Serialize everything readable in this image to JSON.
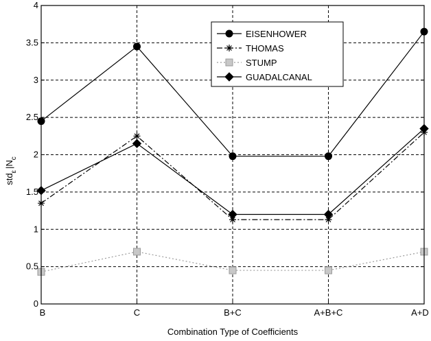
{
  "chart_data": {
    "type": "line",
    "categories": [
      "B",
      "C",
      "B+C",
      "A+B+C",
      "A+D"
    ],
    "xlabel": "Combination Type of Coefficients",
    "ylabel": "std",
    "ylabel_subscript": "ε",
    "ylabel_tail": "N",
    "ylabel_tail_subscript": "c",
    "ylim": [
      0,
      4
    ],
    "yticks": [
      "0",
      "0.5",
      "1",
      "1.5",
      "2",
      "2.5",
      "3",
      "3.5",
      "4"
    ],
    "grid": true,
    "legend_position": "top-right",
    "series": [
      {
        "name": "EISENHOWER",
        "marker": "circle",
        "dash": "solid",
        "color": "#000000",
        "values": [
          2.45,
          3.45,
          1.98,
          1.98,
          3.65
        ]
      },
      {
        "name": "THOMAS",
        "marker": "star",
        "dash": "dashdot",
        "color": "#000000",
        "values": [
          1.35,
          2.25,
          1.13,
          1.13,
          2.3
        ]
      },
      {
        "name": "STUMP",
        "marker": "square",
        "dash": "dotted",
        "color": "#9a9a9a",
        "values": [
          0.43,
          0.7,
          0.45,
          0.45,
          0.7
        ]
      },
      {
        "name": "GUADALCANAL",
        "marker": "diamond",
        "dash": "solid",
        "color": "#000000",
        "values": [
          1.52,
          2.15,
          1.2,
          1.2,
          2.35
        ]
      }
    ]
  }
}
